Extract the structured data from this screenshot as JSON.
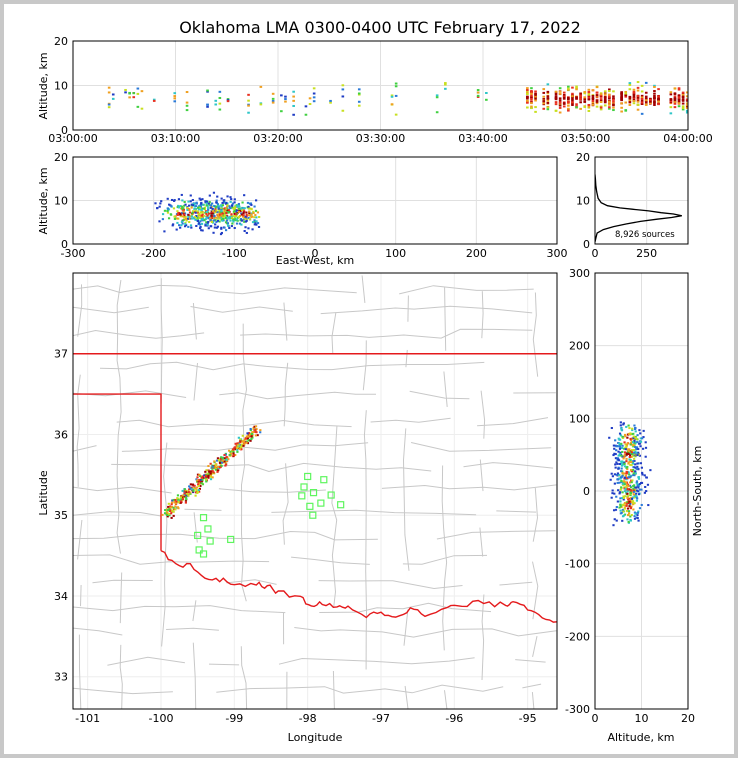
{
  "chart_data": [
    {
      "id": "time-altitude",
      "type": "heatmap",
      "title": "Oklahoma LMA 0300-0400 UTC February 17, 2022",
      "xlabel": "",
      "ylabel": "Altitude, km",
      "xticks": [
        "03:00:00",
        "03:10:00",
        "03:20:00",
        "03:30:00",
        "03:40:00",
        "03:50:00",
        "04:00:00"
      ],
      "xlim_minutes": [
        0,
        60
      ],
      "yticks": [
        0,
        10,
        20
      ],
      "ylim": [
        0,
        20
      ]
    },
    {
      "id": "eastwest-altitude",
      "type": "heatmap",
      "xlabel": "East-West, km",
      "ylabel": "Altitude, km",
      "xticks": [
        -300,
        -200,
        -100,
        0,
        100,
        200,
        300
      ],
      "xlim": [
        -300,
        300
      ],
      "yticks": [
        0,
        10,
        20
      ],
      "ylim": [
        0,
        20
      ]
    },
    {
      "id": "altitude-histogram",
      "type": "line",
      "annotation": "8,926 sources",
      "xticks": [
        0,
        250
      ],
      "xlim": [
        0,
        450
      ],
      "yticks": [
        0,
        10,
        20
      ],
      "ylim": [
        0,
        20
      ],
      "points": [
        [
          0,
          0.5
        ],
        [
          5,
          1.5
        ],
        [
          10,
          2.5
        ],
        [
          40,
          3.3
        ],
        [
          90,
          4.0
        ],
        [
          150,
          4.6
        ],
        [
          220,
          5.2
        ],
        [
          300,
          5.7
        ],
        [
          370,
          6.1
        ],
        [
          420,
          6.5
        ],
        [
          380,
          6.9
        ],
        [
          320,
          7.2
        ],
        [
          260,
          7.6
        ],
        [
          180,
          8.0
        ],
        [
          120,
          8.3
        ],
        [
          60,
          8.8
        ],
        [
          30,
          9.5
        ],
        [
          15,
          10.5
        ],
        [
          8,
          12
        ],
        [
          4,
          13.5
        ],
        [
          2,
          15
        ],
        [
          0,
          16
        ]
      ]
    },
    {
      "id": "plan-view",
      "type": "scatter",
      "xlabel": "Longitude",
      "ylabel": "Latitude",
      "xticks": [
        -101,
        -100,
        -99,
        -98,
        -97,
        -96,
        -95
      ],
      "xlim": [
        -101.2,
        -94.6
      ],
      "yticks": [
        33,
        34,
        35,
        36,
        37
      ],
      "ylim": [
        32.6,
        38.0
      ],
      "stations": [
        [
          -98.0,
          35.48
        ],
        [
          -98.05,
          35.35
        ],
        [
          -97.92,
          35.28
        ],
        [
          -98.08,
          35.24
        ],
        [
          -97.78,
          35.44
        ],
        [
          -97.68,
          35.25
        ],
        [
          -97.82,
          35.15
        ],
        [
          -97.97,
          35.11
        ],
        [
          -97.93,
          35.0
        ],
        [
          -97.55,
          35.13
        ],
        [
          -99.42,
          34.97
        ],
        [
          -99.36,
          34.83
        ],
        [
          -99.5,
          34.75
        ],
        [
          -99.33,
          34.68
        ],
        [
          -99.05,
          34.7
        ],
        [
          -99.48,
          34.57
        ],
        [
          -99.42,
          34.52
        ]
      ],
      "colors": {
        "state_border": "#e41a1c",
        "county_border": "#c8c8c8",
        "station": "#5ef55e"
      }
    },
    {
      "id": "altitude-northsouth",
      "type": "heatmap",
      "xlabel": "Altitude, km",
      "ylabel": "North-South, km",
      "xticks": [
        0,
        10,
        20
      ],
      "xlim": [
        0,
        20
      ],
      "yticks": [
        -300,
        -200,
        -100,
        0,
        100,
        200,
        300
      ],
      "ylim": [
        -300,
        300
      ]
    }
  ]
}
